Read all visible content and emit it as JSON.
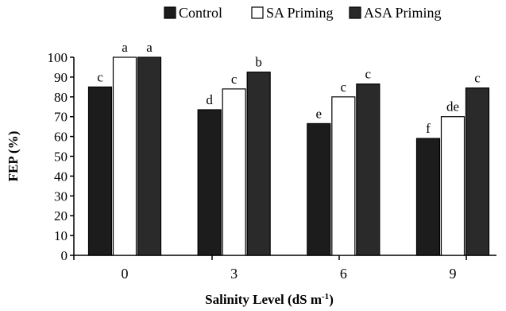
{
  "chart_data": {
    "type": "bar",
    "title": "",
    "xlabel": "Salinity Level (dS m",
    "xlabel_superscript": "-1",
    "xlabel_close": ")",
    "ylabel": "FEP (%)",
    "ylim": [
      0,
      100
    ],
    "yticks": [
      "0",
      "10",
      "20",
      "30",
      "40",
      "50",
      "60",
      "70",
      "80",
      "90",
      "100"
    ],
    "categories": [
      "0",
      "3",
      "6",
      "9"
    ],
    "legend_position": "top",
    "series": [
      {
        "name": "Control",
        "color": "#1c1c1c",
        "values": [
          85,
          73.5,
          66.5,
          59
        ],
        "letters": [
          "c",
          "d",
          "e",
          "f"
        ]
      },
      {
        "name": "SA Priming",
        "color": "#ffffff",
        "values": [
          100,
          84,
          80,
          70
        ],
        "letters": [
          "a",
          "c",
          "c",
          "de"
        ]
      },
      {
        "name": "ASA Priming",
        "color": "#2a2a2a",
        "values": [
          100,
          92.5,
          86.5,
          84.5
        ],
        "letters": [
          "a",
          "b",
          "c",
          "c"
        ]
      }
    ]
  }
}
